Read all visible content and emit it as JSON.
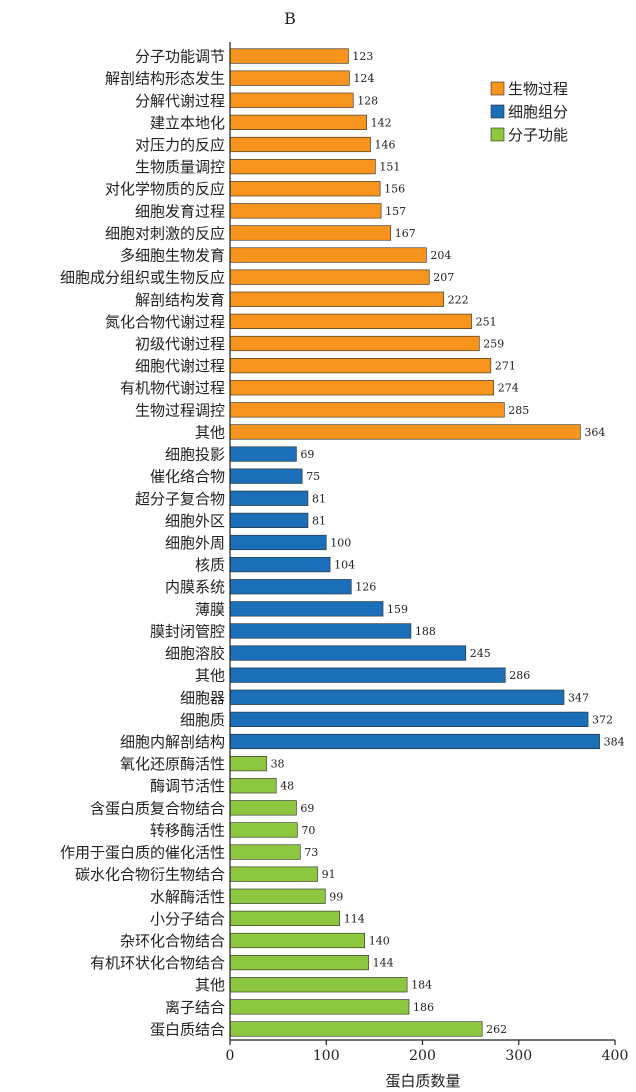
{
  "panel_letter": "B",
  "chart_data": {
    "type": "bar",
    "orientation": "horizontal",
    "title": "",
    "xlabel": "蛋白质数量",
    "ylabel": "",
    "xlim": [
      0,
      400
    ],
    "xticks": [
      0,
      100,
      200,
      300,
      400
    ],
    "grid": false,
    "legend_position": "top-right",
    "legend": [
      {
        "name": "生物过程",
        "color": "#F7941D"
      },
      {
        "name": "细胞组分",
        "color": "#1A6FB8"
      },
      {
        "name": "分子功能",
        "color": "#8DC63F"
      }
    ],
    "categories": [
      "分子功能调节",
      "解剖结构形态发生",
      "分解代谢过程",
      "建立本地化",
      "对压力的反应",
      "生物质量调控",
      "对化学物质的反应",
      "细胞发育过程",
      "细胞对刺激的反应",
      "多细胞生物发育",
      "细胞成分组织或生物反应",
      "解剖结构发育",
      "氮化合物代谢过程",
      "初级代谢过程",
      "细胞代谢过程",
      "有机物代谢过程",
      "生物过程调控",
      "其他",
      "细胞投影",
      "催化络合物",
      "超分子复合物",
      "细胞外区",
      "细胞外周",
      "核质",
      "内膜系统",
      "薄膜",
      "膜封闭管腔",
      "细胞溶胶",
      "其他",
      "细胞器",
      "细胞质",
      "细胞内解剖结构",
      "氧化还原酶活性",
      "酶调节活性",
      "含蛋白质复合物结合",
      "转移酶活性",
      "作用于蛋白质的催化活性",
      "碳水化合物衍生物结合",
      "水解酶活性",
      "小分子结合",
      "杂环化合物结合",
      "有机环状化合物结合",
      "其他",
      "离子结合",
      "蛋白质结合"
    ],
    "values": [
      123,
      124,
      128,
      142,
      146,
      151,
      156,
      157,
      167,
      204,
      207,
      222,
      251,
      259,
      271,
      274,
      285,
      364,
      69,
      75,
      81,
      81,
      100,
      104,
      126,
      159,
      188,
      245,
      286,
      347,
      372,
      384,
      38,
      48,
      69,
      70,
      73,
      91,
      99,
      114,
      140,
      144,
      184,
      186,
      262
    ],
    "groups": [
      0,
      0,
      0,
      0,
      0,
      0,
      0,
      0,
      0,
      0,
      0,
      0,
      0,
      0,
      0,
      0,
      0,
      0,
      1,
      1,
      1,
      1,
      1,
      1,
      1,
      1,
      1,
      1,
      1,
      1,
      1,
      1,
      2,
      2,
      2,
      2,
      2,
      2,
      2,
      2,
      2,
      2,
      2,
      2,
      2
    ]
  }
}
